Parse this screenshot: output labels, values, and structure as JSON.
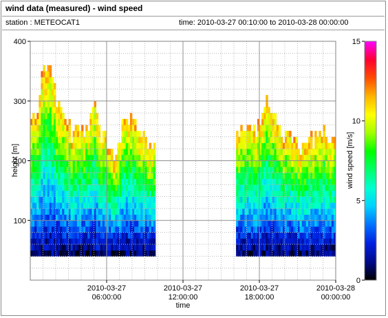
{
  "header": {
    "title": "wind data (measured) - wind speed",
    "station": "station : METEOCAT1",
    "timerange": "time: 2010-03-27 00:10:00 to 2010-03-28 00:00:00"
  },
  "chart_data": {
    "type": "heatmap",
    "title": "wind data (measured) - wind speed",
    "xlabel": "time",
    "ylabel": "height [m]",
    "colorbar_label": "wind speed [m/s]",
    "x_range_hours": [
      0,
      24
    ],
    "ylim": [
      0,
      400
    ],
    "clim": [
      0,
      15
    ],
    "y_ticks": [
      100,
      200,
      300,
      400
    ],
    "x_ticks": [
      {
        "hour": 6,
        "line1": "2010-03-27",
        "line2": "06:00:00"
      },
      {
        "hour": 12,
        "line1": "2010-03-27",
        "line2": "12:00:00"
      },
      {
        "hour": 18,
        "line1": "2010-03-27",
        "line2": "18:00:00"
      },
      {
        "hour": 24,
        "line1": "2010-03-28",
        "line2": "00:00:00"
      }
    ],
    "colorbar_ticks": [
      0,
      5,
      10,
      15
    ],
    "data_gap_hours": [
      9.8,
      16.2
    ],
    "color_scale": [
      "#000000",
      "#000a8a",
      "#0020e0",
      "#0070ff",
      "#00d0ff",
      "#00ffd2",
      "#00ff6a",
      "#00ff00",
      "#a0ff00",
      "#ffff00",
      "#ffb400",
      "#ff4c00",
      "#ff0033",
      "#ff00ff"
    ],
    "grid": true,
    "max_height_profile_m": [
      {
        "hour": 0.0,
        "max_height": 255
      },
      {
        "hour": 0.6,
        "max_height": 280
      },
      {
        "hour": 1.0,
        "max_height": 362
      },
      {
        "hour": 1.5,
        "max_height": 362
      },
      {
        "hour": 2.0,
        "max_height": 300
      },
      {
        "hour": 2.6,
        "max_height": 275
      },
      {
        "hour": 3.2,
        "max_height": 245
      },
      {
        "hour": 4.0,
        "max_height": 240
      },
      {
        "hour": 4.6,
        "max_height": 262
      },
      {
        "hour": 5.0,
        "max_height": 300
      },
      {
        "hour": 5.5,
        "max_height": 245
      },
      {
        "hour": 6.0,
        "max_height": 230
      },
      {
        "hour": 6.6,
        "max_height": 200
      },
      {
        "hour": 7.2,
        "max_height": 250
      },
      {
        "hour": 7.8,
        "max_height": 265
      },
      {
        "hour": 8.4,
        "max_height": 240
      },
      {
        "hour": 9.0,
        "max_height": 225
      },
      {
        "hour": 9.6,
        "max_height": 215
      },
      {
        "hour": 16.2,
        "max_height": 230
      },
      {
        "hour": 16.8,
        "max_height": 255
      },
      {
        "hour": 17.4,
        "max_height": 245
      },
      {
        "hour": 18.0,
        "max_height": 255
      },
      {
        "hour": 18.6,
        "max_height": 300
      },
      {
        "hour": 19.2,
        "max_height": 270
      },
      {
        "hour": 20.0,
        "max_height": 230
      },
      {
        "hour": 20.6,
        "max_height": 240
      },
      {
        "hour": 21.2,
        "max_height": 215
      },
      {
        "hour": 21.8,
        "max_height": 220
      },
      {
        "hour": 22.4,
        "max_height": 235
      },
      {
        "hour": 23.0,
        "max_height": 245
      },
      {
        "hour": 23.6,
        "max_height": 235
      }
    ],
    "lowest_level_m": 40
  }
}
